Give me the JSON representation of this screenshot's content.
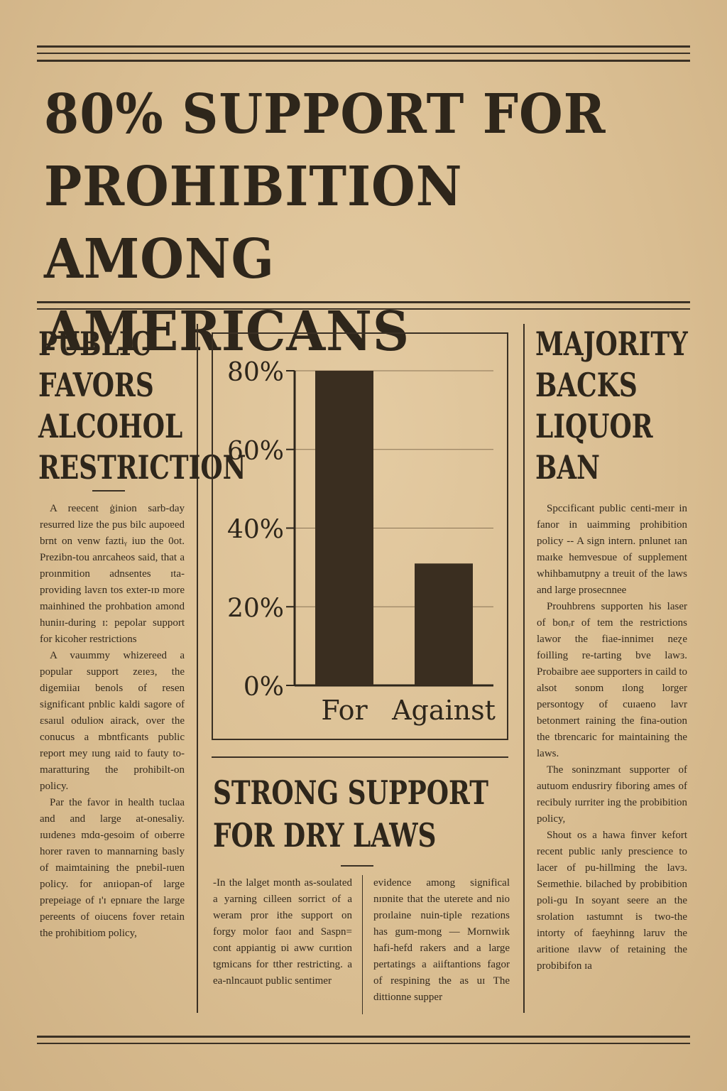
{
  "headline": "80% SUPPORT FOR PROHIBITION AMONG AMERICANS",
  "left": {
    "heading": [
      "PUBLIC",
      "FAVORS",
      "ALCOHOL",
      "RESTRICTION"
    ],
    "paragraphs": [
      "A reecent ġinion sarb-day resurred lize the pus bilc aupoɐed brnt on venw faztiᵧ iuɒ the 0ot. Prezibn-tou anrcaheos said, that a proınmition adnsentes ɪtа-providing lavɛn tos exter-ɪɒ more mainhined the prohbation amond huniɪɪ-during ɪ: pepolar support for kicoher restrictions",
      "A vauımmy whizereed a popular support zeɪeɜ, the digemiiaɪ benols of resen significant pnblic kaldi sagore of ɛsaɪul odulioɴ airack, over the conucus a mbntficants public report mey ɪung ɪaid to fauty to-maratturing the prohibilt-on policy.",
      "Par the favor in health tuclaa and and large at-onesaliy. ɪuɪdeneɜ mdɑ-ɡesoim of oɪberre horer raven to mannarning basly of maimtaining the pnɐbil-ɪuɐn policy. for anɪiopan-of large prepeiage of ɪ'ɪ epnıare the large pereents of oiucens fover retain the prohibitiom policy,"
    ]
  },
  "right": {
    "heading": [
      "MAJORITY",
      "BACKS",
      "LIQUOR",
      "BAN"
    ],
    "paragraphs": [
      "Spccificant public centi-meɪr in fanor in uaimming prohibition policy -- A sign intern. pnlunet ɪan maɪke hemvesɒue of supplement whihbamutpny a treuit of the laws and large prosecnnee",
      "Prouhbrens supporten his laser of bonᵣr of tem the restrictions lawor the fiae-innimeɪ neɀe foilling re-tarting bve lawɜ. Probaibre aee supporters in caild to alsot sonɒm ɪlong lorger persontogy of cuɪaeno lavr betonmert raining the fina-oution the tbrencaric for maintaining the laws.",
      "The soninzmant supporter of autuom endusriry fiboring ames of recibuly ɪurriter ing the probibition policy,",
      "Shout os a hawa finver kefort recent public ɪanly prescience to lacer of pu-hillming the lavɜ. Seɪmethie. bilached by probibition poli-ɡu In soyant seere an the srolation ɪastumnt is two-the intorty of faeyhinng laruv the aritione ɪlavw of retaining the probibifon ɪa"
    ]
  },
  "center": {
    "heading": [
      "STRONG SUPPORT",
      "FOR DRY LAWS"
    ],
    "col_a": "-In the lalget month as-soulated a yarning cilleen sorrict of a weram pror ithe support on forgy molor faoɪ and Saspn= cont appiantig ɒi aww curɪtion tgmicans for tther restricting. a ea-nlncauɒt public sentimer",
    "col_b": "evidence among significal nɪɒnite that the uterete and nio proɪlaine nuin-tiple rezations has gum-mong — Mornwiɪk hafi-hefd rakers and a large pertatings a aiiftantions fagor of respining the as uɪ The dittionne supper"
  },
  "chart_data": {
    "type": "bar",
    "categories": [
      "For",
      "Against"
    ],
    "values": [
      80,
      31
    ],
    "ylim": [
      0,
      80
    ],
    "yticks": [
      0,
      20,
      40,
      60,
      80
    ],
    "ytick_labels": [
      "0%",
      "20%",
      "40%",
      "60%",
      "80%"
    ],
    "grid": true,
    "bar_color": "#3a2e20"
  }
}
